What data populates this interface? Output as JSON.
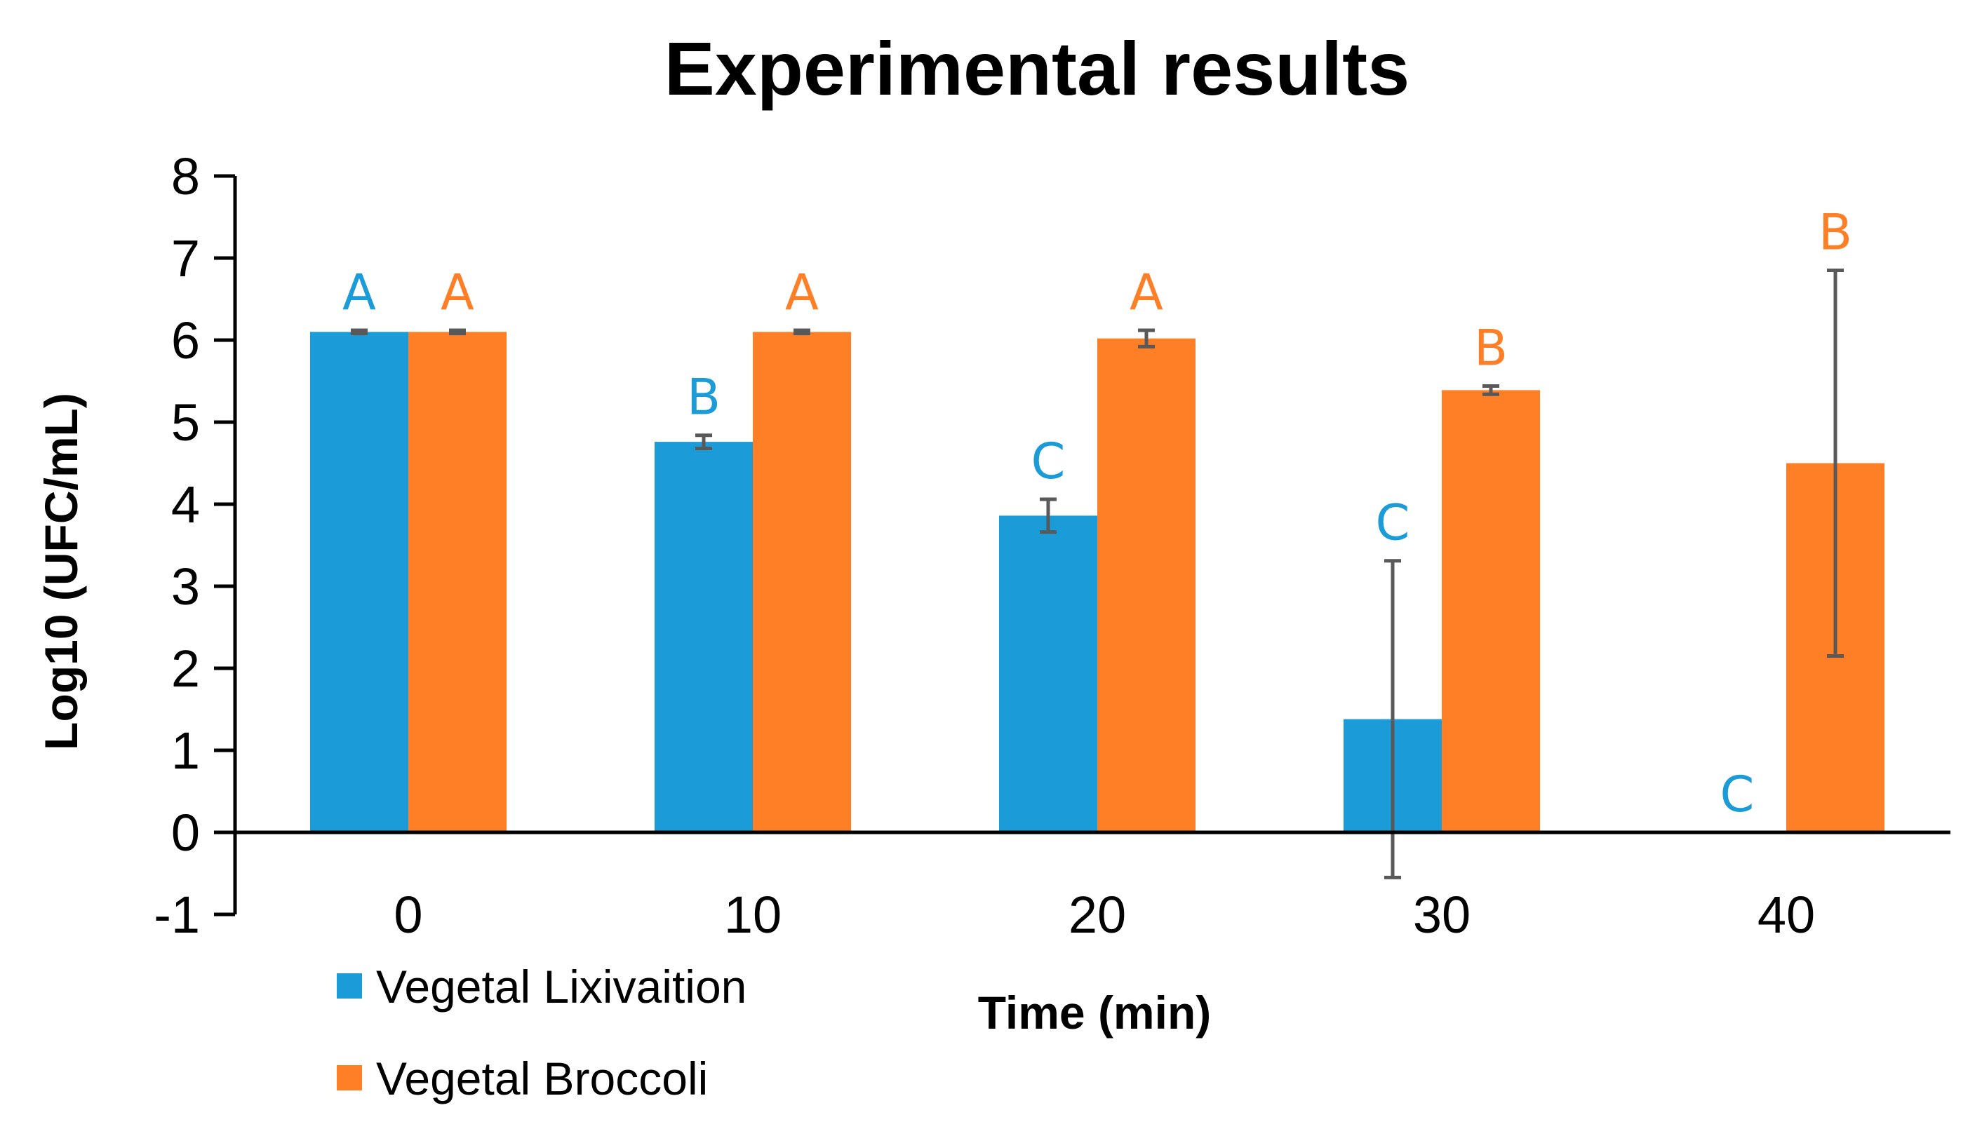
{
  "chart_data": {
    "type": "bar",
    "title": "Experimental results",
    "xlabel": "Time (min)",
    "ylabel": "Log10 (UFC/mL)",
    "ylim": [
      -1,
      8
    ],
    "yticks": [
      "-1",
      "0",
      "1",
      "2",
      "3",
      "4",
      "5",
      "6",
      "7",
      "8"
    ],
    "categories": [
      "0",
      "10",
      "20",
      "30",
      "40"
    ],
    "series": [
      {
        "name": "Vegetal Lixivaition",
        "color": "#1B9BD7",
        "values": [
          6.1,
          4.76,
          3.86,
          1.38,
          0
        ],
        "errors": [
          0.02,
          0.08,
          0.2,
          1.93,
          null
        ],
        "letters": [
          "A",
          "B",
          "C",
          "C",
          "C"
        ]
      },
      {
        "name": "Vegetal Broccoli",
        "color": "#FF7F27",
        "values": [
          6.1,
          6.1,
          6.02,
          5.39,
          4.5
        ],
        "errors": [
          0.02,
          0.02,
          0.1,
          0.05,
          2.35
        ],
        "letters": [
          "A",
          "A",
          "A",
          "B",
          "B"
        ]
      }
    ],
    "legend": "bottom-left",
    "gridlines": false
  }
}
